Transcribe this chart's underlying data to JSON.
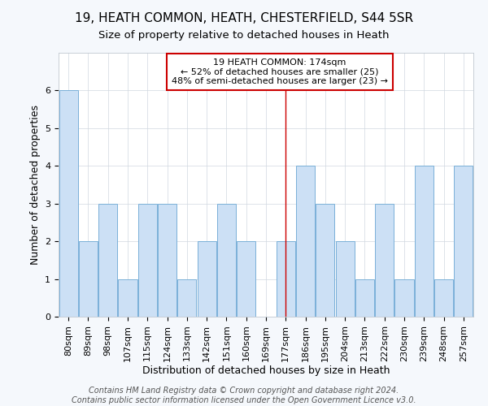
{
  "title": "19, HEATH COMMON, HEATH, CHESTERFIELD, S44 5SR",
  "subtitle": "Size of property relative to detached houses in Heath",
  "xlabel": "Distribution of detached houses by size in Heath",
  "ylabel": "Number of detached properties",
  "categories": [
    "80sqm",
    "89sqm",
    "98sqm",
    "107sqm",
    "115sqm",
    "124sqm",
    "133sqm",
    "142sqm",
    "151sqm",
    "160sqm",
    "169sqm",
    "177sqm",
    "186sqm",
    "195sqm",
    "204sqm",
    "213sqm",
    "222sqm",
    "230sqm",
    "239sqm",
    "248sqm",
    "257sqm"
  ],
  "values": [
    6,
    2,
    3,
    1,
    3,
    3,
    1,
    2,
    3,
    2,
    0,
    2,
    4,
    3,
    2,
    1,
    3,
    1,
    4,
    1,
    4
  ],
  "bar_color": "#cce0f5",
  "bar_edge_color": "#7ab0d8",
  "highlight_index": 11,
  "highlight_line_color": "#cc0000",
  "ylim": [
    0,
    7
  ],
  "yticks": [
    0,
    1,
    2,
    3,
    4,
    5,
    6,
    7
  ],
  "annotation_text": "19 HEATH COMMON: 174sqm\n← 52% of detached houses are smaller (25)\n48% of semi-detached houses are larger (23) →",
  "annotation_box_color": "#cc0000",
  "footer_text": "Contains HM Land Registry data © Crown copyright and database right 2024.\nContains public sector information licensed under the Open Government Licence v3.0.",
  "title_fontsize": 11,
  "subtitle_fontsize": 9.5,
  "axis_label_fontsize": 9,
  "tick_fontsize": 8,
  "annotation_fontsize": 8,
  "footer_fontsize": 7,
  "background_color": "#f5f8fc",
  "plot_bg_color": "#ffffff"
}
